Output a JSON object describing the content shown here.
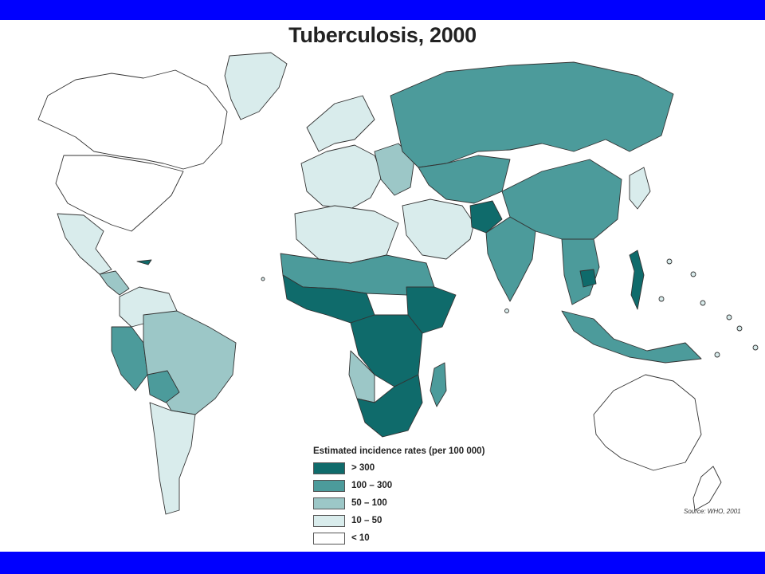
{
  "title": "Tuberculosis, 2000",
  "legend": {
    "title": "Estimated incidence rates (per 100 000)",
    "items": [
      {
        "label": "> 300",
        "color": "#0f6b6b"
      },
      {
        "label": "100 – 300",
        "color": "#4c9b9b"
      },
      {
        "label": "50 – 100",
        "color": "#9cc7c7"
      },
      {
        "label": "10 – 50",
        "color": "#d9ecec"
      },
      {
        "label": "< 10",
        "color": "#ffffff"
      }
    ]
  },
  "source": "Source: WHO, 2001",
  "colors": {
    "frame_bar": "#0000ff",
    "border": "#333333"
  }
}
